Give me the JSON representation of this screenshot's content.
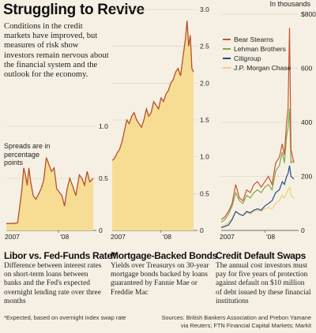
{
  "title": "Struggling to Revive",
  "intro": "Conditions in the credit markets have improved, but measures of risk show investors remain nervous about the financial system and the outlook for the economy.",
  "units_libor": "Spreads are in percentage points",
  "units_cds": "In thousands",
  "footnote": "*Expected, based on overnight index swap rate",
  "sources_line1": "Sources: British Bankers Association and Prebon Yamane",
  "sources_line2": "via Reuters; FTN Financial Capital Markets; Markit",
  "colors": {
    "area_fill": "#f7dc93",
    "series_line": "#b5502e",
    "bear": "#c8542e",
    "lehman": "#7fa84a",
    "citi": "#1d4e86",
    "jpm": "#f0d07a"
  },
  "chart_data": [
    {
      "type": "area",
      "title": "Libor vs. Fed-Funds Rate*",
      "description": "Difference between interest rates on short-term loans between banks and the Fed's expected overnight lending rate over three months",
      "x_tick_labels": [
        "2007",
        "'08"
      ],
      "y_ticks": [
        "0",
        "0.5",
        "1.0"
      ],
      "ylim": [
        0,
        1.5
      ],
      "x": [
        0,
        0.08,
        0.13,
        0.16,
        0.18,
        0.2,
        0.22,
        0.24,
        0.26,
        0.28,
        0.31,
        0.34,
        0.37,
        0.4,
        0.43,
        0.46,
        0.49,
        0.52,
        0.55,
        0.58,
        0.61,
        0.64,
        0.67,
        0.7,
        0.73,
        0.76,
        0.8,
        0.84,
        0.87,
        0.9,
        0.93,
        0.96,
        1.0
      ],
      "values": [
        0.1,
        0.1,
        0.11,
        0.4,
        0.6,
        0.9,
        0.8,
        0.65,
        0.9,
        0.7,
        0.5,
        0.45,
        0.52,
        0.6,
        0.72,
        1.05,
        0.95,
        0.85,
        0.9,
        0.6,
        0.55,
        0.5,
        0.35,
        0.6,
        0.75,
        0.65,
        0.5,
        0.8,
        0.75,
        0.65,
        0.85,
        0.7,
        0.75
      ]
    },
    {
      "type": "area",
      "title": "Mortgage-Backed Bonds",
      "description": "Yields over Treasurys on 30-year mortgage bonds backed by loans guaranteed by Fannie Mae or Freddie Mac",
      "x_tick_labels": [
        "2007",
        "'08"
      ],
      "y_ticks": [
        "0",
        "0.5",
        "1.0",
        "1.5",
        "2.0",
        "2.5",
        "3.0"
      ],
      "ylim": [
        0,
        3.0
      ],
      "x": [
        0,
        0.03,
        0.06,
        0.09,
        0.12,
        0.15,
        0.18,
        0.21,
        0.24,
        0.27,
        0.3,
        0.33,
        0.36,
        0.39,
        0.42,
        0.45,
        0.48,
        0.51,
        0.54,
        0.57,
        0.6,
        0.63,
        0.66,
        0.69,
        0.72,
        0.75,
        0.78,
        0.81,
        0.84,
        0.87,
        0.9,
        0.92,
        0.94,
        0.96,
        0.98,
        1.0
      ],
      "values": [
        0.95,
        0.98,
        1.05,
        1.1,
        1.2,
        1.35,
        1.5,
        1.45,
        1.55,
        1.6,
        1.5,
        1.45,
        1.4,
        1.5,
        1.65,
        1.55,
        1.6,
        1.75,
        1.7,
        1.65,
        1.8,
        1.75,
        1.85,
        1.9,
        2.0,
        2.05,
        2.15,
        2.2,
        2.1,
        2.35,
        2.6,
        2.85,
        2.5,
        2.65,
        2.2,
        2.15
      ]
    },
    {
      "type": "line",
      "title": "Credit Default Swaps",
      "description": "The annual cost investors must pay for five years of protection against default on $10 million of debt issued by these financial institutions",
      "x_tick_labels": [
        "2007",
        "'08"
      ],
      "y_ticks": [
        "0",
        "200",
        "400",
        "600",
        "$800"
      ],
      "ylim": [
        0,
        800
      ],
      "x": [
        0,
        0.05,
        0.1,
        0.15,
        0.2,
        0.25,
        0.3,
        0.35,
        0.4,
        0.45,
        0.5,
        0.55,
        0.6,
        0.65,
        0.7,
        0.75,
        0.8,
        0.84,
        0.87,
        0.9,
        0.92,
        0.94,
        0.96,
        1.0
      ],
      "series": [
        {
          "name": "Bear Stearns",
          "color_key": "bear",
          "values": [
            40,
            50,
            70,
            100,
            170,
            120,
            110,
            150,
            140,
            170,
            180,
            160,
            180,
            200,
            170,
            250,
            270,
            320,
            280,
            400,
            450,
            750,
            300,
            250
          ]
        },
        {
          "name": "Lehman Brothers",
          "color_key": "lehman",
          "values": [
            30,
            40,
            60,
            90,
            140,
            110,
            100,
            130,
            120,
            140,
            150,
            140,
            160,
            170,
            150,
            220,
            240,
            290,
            250,
            350,
            380,
            450,
            250,
            260
          ]
        },
        {
          "name": "Citigroup",
          "color_key": "citi",
          "values": [
            10,
            15,
            20,
            40,
            70,
            60,
            55,
            70,
            65,
            75,
            80,
            75,
            90,
            100,
            110,
            140,
            150,
            180,
            170,
            200,
            210,
            240,
            200,
            190
          ]
        },
        {
          "name": "J.P. Morgan Chase",
          "color_key": "jpm",
          "values": [
            15,
            20,
            30,
            45,
            70,
            60,
            55,
            65,
            60,
            70,
            75,
            70,
            80,
            85,
            80,
            100,
            110,
            130,
            120,
            140,
            150,
            160,
            130,
            120
          ]
        }
      ]
    }
  ]
}
